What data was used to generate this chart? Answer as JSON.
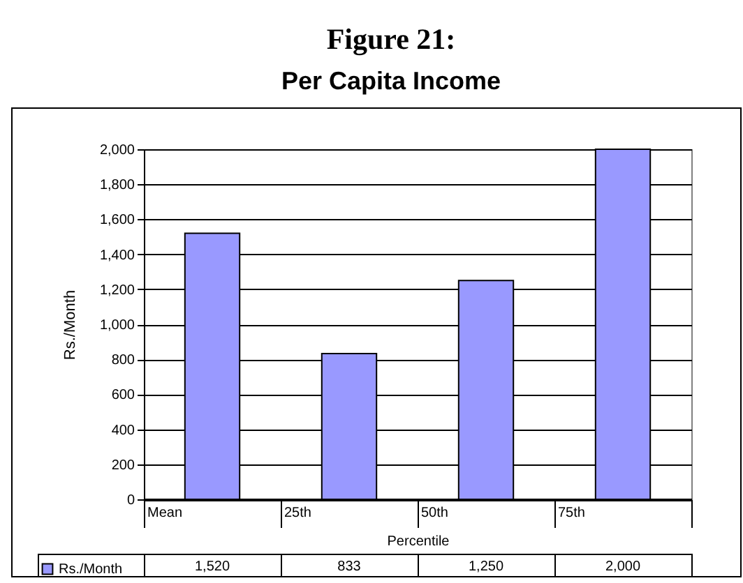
{
  "chart_data": {
    "type": "bar",
    "title": "Figure 21:",
    "subtitle": "Per Capita Income",
    "xlabel": "Percentile",
    "ylabel": "Rs./Month",
    "categories": [
      "Mean",
      "25th",
      "50th",
      "75th"
    ],
    "series": [
      {
        "name": "Rs./Month",
        "color": "#9999ff",
        "values": [
          1520,
          833,
          1250,
          2000
        ],
        "value_labels": [
          "1,520",
          "833",
          "1,250",
          "2,000"
        ]
      }
    ],
    "ylim": [
      0,
      2000
    ],
    "yticks": [
      0,
      200,
      400,
      600,
      800,
      {
        "value": 1000,
        "label": "1,000"
      },
      {
        "value": 1200,
        "label": "1,200"
      },
      {
        "value": 1400,
        "label": "1,400"
      },
      {
        "value": 1600,
        "label": "1,600"
      },
      {
        "value": 1800,
        "label": "1,800"
      },
      {
        "value": 2000,
        "label": "2,000"
      }
    ],
    "grid": "y",
    "legend": "bottom left"
  }
}
